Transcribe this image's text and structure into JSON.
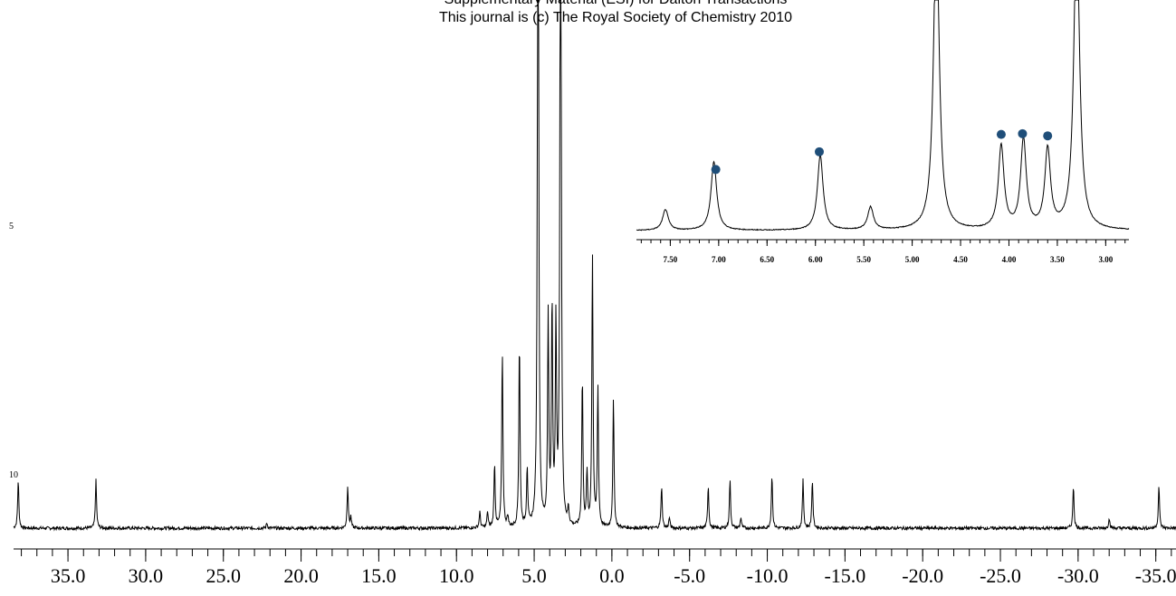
{
  "header": {
    "line1": "Supplementary Material (ESI) for Dalton Transactions",
    "line2": "This journal is (c) The Royal Society of Chemistry 2010"
  },
  "side_labels": {
    "upper": "5",
    "lower": "10"
  },
  "chart_data": [
    {
      "type": "line",
      "id": "main-spectrum",
      "title": "",
      "xlabel": "",
      "ylabel": "",
      "x_reversed": true,
      "xlim": [
        38.5,
        -36.3
      ],
      "ylim": [
        0,
        1
      ],
      "grid": false,
      "legend": "none",
      "line_color": "#000000",
      "tick_labels": [
        "35.0",
        "30.0",
        "25.0",
        "20.0",
        "15.0",
        "10.0",
        "5.0",
        "0.0",
        "-5.0",
        "-10.0",
        "-15.0",
        "-20.0",
        "-25.0",
        "-30.0",
        "-35.0"
      ],
      "tick_values": [
        35,
        30,
        25,
        20,
        15,
        10,
        5,
        0,
        -5,
        -10,
        -15,
        -20,
        -25,
        -30,
        -35
      ],
      "minor_tick_step": 1,
      "baseline": 0.0,
      "peaks": [
        {
          "shift": 38.2,
          "intensity": 0.09
        },
        {
          "shift": 33.2,
          "intensity": 0.09
        },
        {
          "shift": 22.2,
          "intensity": 0.01
        },
        {
          "shift": 17.0,
          "intensity": 0.08
        },
        {
          "shift": 16.8,
          "intensity": 0.02
        },
        {
          "shift": 8.5,
          "intensity": 0.03
        },
        {
          "shift": 8.0,
          "intensity": 0.03
        },
        {
          "shift": 7.55,
          "intensity": 0.12
        },
        {
          "shift": 7.05,
          "intensity": 0.33
        },
        {
          "shift": 6.7,
          "intensity": 0.02
        },
        {
          "shift": 5.95,
          "intensity": 0.35
        },
        {
          "shift": 5.45,
          "intensity": 0.11
        },
        {
          "shift": 4.75,
          "intensity": 1.6
        },
        {
          "shift": 4.1,
          "intensity": 0.39
        },
        {
          "shift": 3.85,
          "intensity": 0.41
        },
        {
          "shift": 3.6,
          "intensity": 0.37
        },
        {
          "shift": 3.3,
          "intensity": 1.6
        },
        {
          "shift": 2.8,
          "intensity": 0.03
        },
        {
          "shift": 1.9,
          "intensity": 0.28
        },
        {
          "shift": 1.6,
          "intensity": 0.1
        },
        {
          "shift": 1.25,
          "intensity": 0.51
        },
        {
          "shift": 0.9,
          "intensity": 0.26
        },
        {
          "shift": -0.1,
          "intensity": 0.24
        },
        {
          "shift": -3.2,
          "intensity": 0.08
        },
        {
          "shift": -3.7,
          "intensity": 0.02
        },
        {
          "shift": -6.2,
          "intensity": 0.08
        },
        {
          "shift": -7.6,
          "intensity": 0.09
        },
        {
          "shift": -8.3,
          "intensity": 0.02
        },
        {
          "shift": -10.3,
          "intensity": 0.1
        },
        {
          "shift": -12.3,
          "intensity": 0.09
        },
        {
          "shift": -12.9,
          "intensity": 0.09
        },
        {
          "shift": -29.7,
          "intensity": 0.08
        },
        {
          "shift": -32.0,
          "intensity": 0.02
        },
        {
          "shift": -35.2,
          "intensity": 0.08
        }
      ]
    },
    {
      "type": "line",
      "id": "inset-spectrum",
      "title": "",
      "xlabel": "",
      "ylabel": "",
      "x_reversed": true,
      "xlim": [
        7.85,
        2.76
      ],
      "ylim": [
        0,
        1
      ],
      "grid": false,
      "legend": "none",
      "line_color": "#000000",
      "marker_color": "#1f4e79",
      "tick_labels": [
        "7.50",
        "7.00",
        "6.50",
        "6.00",
        "5.50",
        "5.00",
        "4.50",
        "4.00",
        "3.50",
        "3.00"
      ],
      "tick_values": [
        7.5,
        7.0,
        6.5,
        6.0,
        5.5,
        5.0,
        4.5,
        4.0,
        3.5,
        3.0
      ],
      "minor_tick_step": 0.1,
      "peaks": [
        {
          "shift": 7.55,
          "intensity": 0.1
        },
        {
          "shift": 7.05,
          "intensity": 0.33
        },
        {
          "shift": 5.95,
          "intensity": 0.36
        },
        {
          "shift": 5.43,
          "intensity": 0.11
        },
        {
          "shift": 4.75,
          "intensity": 1.5
        },
        {
          "shift": 4.08,
          "intensity": 0.4
        },
        {
          "shift": 3.85,
          "intensity": 0.43
        },
        {
          "shift": 3.6,
          "intensity": 0.38
        },
        {
          "shift": 3.3,
          "intensity": 1.5
        }
      ],
      "marked_peaks": [
        7.03,
        5.96,
        4.08,
        3.86,
        3.6
      ]
    }
  ]
}
